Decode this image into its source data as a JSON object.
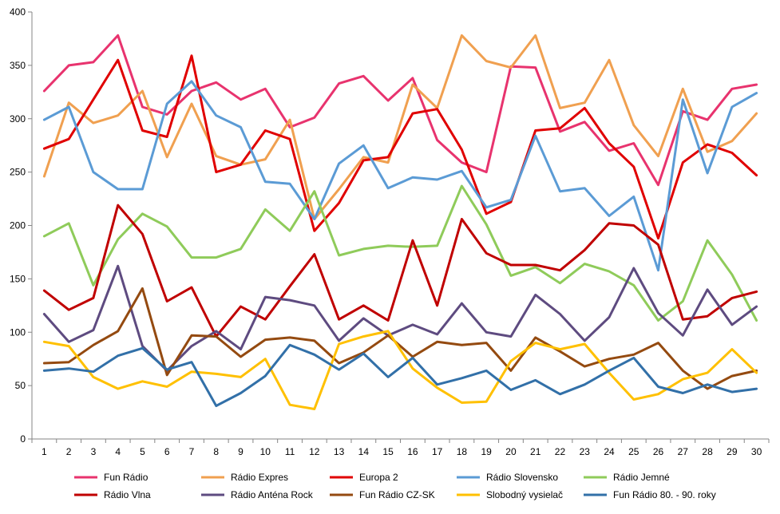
{
  "chart_data": {
    "type": "line",
    "title": "",
    "xlabel": "",
    "ylabel": "",
    "categories": [
      "1",
      "2",
      "3",
      "4",
      "5",
      "6",
      "7",
      "8",
      "9",
      "10",
      "11",
      "12",
      "13",
      "14",
      "15",
      "16",
      "17",
      "18",
      "19",
      "20",
      "21",
      "22",
      "23",
      "24",
      "25",
      "26",
      "27",
      "28",
      "29",
      "30"
    ],
    "ylim": [
      0,
      400
    ],
    "yticks": [
      "0",
      "50",
      "100",
      "150",
      "200",
      "250",
      "300",
      "350",
      "400"
    ],
    "grid": false,
    "legend_position": "bottom",
    "series": [
      {
        "name": "Fun Rádio",
        "color": "#E8336E",
        "values": [
          326,
          350,
          353,
          378,
          311,
          304,
          326,
          334,
          318,
          328,
          292,
          301,
          333,
          340,
          317,
          338,
          280,
          259,
          250,
          349,
          348,
          288,
          297,
          270,
          277,
          238,
          307,
          299,
          328,
          332
        ]
      },
      {
        "name": "Rádio Expres",
        "color": "#F0A050",
        "values": [
          246,
          315,
          296,
          303,
          326,
          264,
          314,
          265,
          257,
          262,
          299,
          206,
          234,
          264,
          259,
          332,
          310,
          378,
          354,
          348,
          378,
          310,
          315,
          355,
          294,
          265,
          328,
          269,
          279,
          305
        ]
      },
      {
        "name": "Europa 2",
        "color": "#E00000",
        "values": [
          272,
          281,
          318,
          355,
          289,
          283,
          359,
          250,
          257,
          289,
          281,
          195,
          221,
          261,
          264,
          305,
          309,
          271,
          211,
          222,
          289,
          291,
          310,
          277,
          255,
          188,
          259,
          276,
          268,
          247
        ]
      },
      {
        "name": "Rádio Slovensko",
        "color": "#5B9BD5",
        "values": [
          299,
          311,
          250,
          234,
          234,
          314,
          335,
          303,
          292,
          241,
          239,
          206,
          258,
          275,
          235,
          245,
          243,
          251,
          217,
          224,
          284,
          232,
          235,
          209,
          227,
          158,
          318,
          249,
          311,
          324
        ]
      },
      {
        "name": "Rádio Jemné",
        "color": "#8FCB5A",
        "values": [
          190,
          202,
          144,
          187,
          211,
          199,
          170,
          170,
          178,
          215,
          195,
          232,
          172,
          178,
          181,
          180,
          181,
          237,
          201,
          153,
          161,
          146,
          164,
          157,
          144,
          111,
          129,
          186,
          154,
          111
        ]
      },
      {
        "name": "Rádio Vlna",
        "color": "#C00000",
        "values": [
          139,
          121,
          132,
          219,
          192,
          129,
          142,
          96,
          124,
          112,
          143,
          173,
          112,
          125,
          111,
          186,
          125,
          206,
          174,
          163,
          163,
          158,
          177,
          202,
          200,
          182,
          112,
          115,
          132,
          138
        ]
      },
      {
        "name": "Rádio Anténa Rock",
        "color": "#5E4B80",
        "values": [
          117,
          91,
          102,
          162,
          87,
          64,
          87,
          101,
          84,
          133,
          130,
          125,
          92,
          113,
          97,
          107,
          98,
          127,
          100,
          96,
          135,
          117,
          92,
          114,
          160,
          118,
          97,
          140,
          107,
          124
        ]
      },
      {
        "name": "Fun Rádio CZ-SK",
        "color": "#944A10",
        "values": [
          71,
          72,
          88,
          101,
          141,
          60,
          97,
          96,
          77,
          93,
          95,
          92,
          71,
          81,
          97,
          77,
          91,
          88,
          90,
          64,
          95,
          82,
          68,
          75,
          79,
          90,
          64,
          47,
          59,
          64
        ]
      },
      {
        "name": "Slobodný vysielač",
        "color": "#FFC000",
        "values": [
          91,
          87,
          58,
          47,
          54,
          49,
          63,
          61,
          58,
          75,
          32,
          28,
          89,
          96,
          101,
          66,
          48,
          34,
          35,
          73,
          90,
          84,
          89,
          62,
          37,
          42,
          56,
          62,
          84,
          62
        ]
      },
      {
        "name": "Fun Rádio 80. - 90. roky",
        "color": "#3270A8",
        "values": [
          64,
          66,
          63,
          78,
          85,
          65,
          72,
          31,
          43,
          59,
          88,
          79,
          65,
          80,
          58,
          76,
          51,
          57,
          64,
          46,
          55,
          42,
          51,
          64,
          76,
          49,
          43,
          51,
          44,
          47
        ]
      }
    ]
  }
}
